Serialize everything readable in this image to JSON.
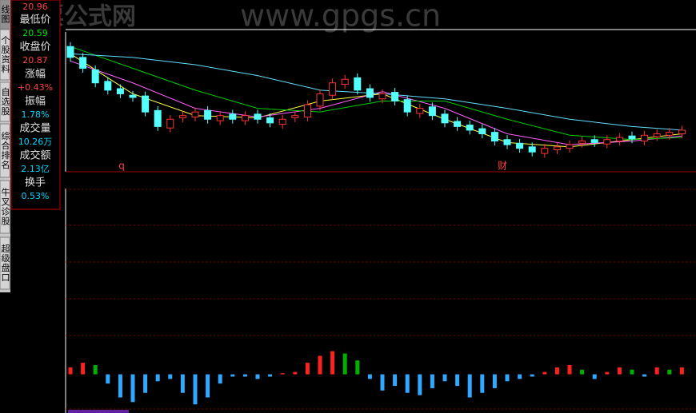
{
  "sidebar": {
    "tabs": [
      "线图",
      "个股资料",
      "自选股",
      "综合排名",
      "牛叉诊股",
      "超级盘口"
    ]
  },
  "watermark": {
    "brand": "股票公式网",
    "url": "www.gpgs.cn"
  },
  "info_panel": {
    "high_value": "20.96",
    "rows": [
      {
        "label": "最低价",
        "value": "20.59",
        "color": "#00e000"
      },
      {
        "label": "收盘价",
        "value": "20.87",
        "color": "#ff4040"
      },
      {
        "label": "涨幅",
        "value": "+0.43%",
        "color": "#ff4040"
      },
      {
        "label": "振幅",
        "value": "1.78%",
        "color": "#00d8ff"
      },
      {
        "label": "成交量",
        "value": "10.26万",
        "color": "#00d8ff"
      },
      {
        "label": "成交额",
        "value": "2.13亿",
        "color": "#00d8ff"
      },
      {
        "label": "换手",
        "value": "0.53%",
        "color": "#00d8ff"
      }
    ]
  },
  "chart_data": [
    {
      "type": "candlestick",
      "ylim": [
        19.9,
        21.8
      ],
      "up_color": "#ff3232",
      "down_color": "#54ffff",
      "annotations": [
        "q",
        "财"
      ],
      "open": [
        21.6,
        21.45,
        21.28,
        21.12,
        21.02,
        20.93,
        20.92,
        20.72,
        20.48,
        20.62,
        20.63,
        20.72,
        20.58,
        20.67,
        20.58,
        20.67,
        20.62,
        20.53,
        20.62,
        20.63,
        20.78,
        20.93,
        21.08,
        21.17,
        21.02,
        20.88,
        20.97,
        20.87,
        20.68,
        20.77,
        20.67,
        20.57,
        20.52,
        20.47,
        20.42,
        20.32,
        20.27,
        20.22,
        20.13,
        20.18,
        20.2,
        20.27,
        20.32,
        20.26,
        20.3,
        20.37,
        20.3,
        20.36,
        20.38,
        20.4
      ],
      "high": [
        21.66,
        21.51,
        21.34,
        21.18,
        21.08,
        20.99,
        20.98,
        20.78,
        20.66,
        20.71,
        20.76,
        20.78,
        20.71,
        20.73,
        20.71,
        20.73,
        20.68,
        20.66,
        20.71,
        20.86,
        21.01,
        21.16,
        21.21,
        21.23,
        21.08,
        21.01,
        21.03,
        20.93,
        20.81,
        20.83,
        20.73,
        20.63,
        20.58,
        20.53,
        20.48,
        20.38,
        20.33,
        20.28,
        20.26,
        20.28,
        20.31,
        20.36,
        20.38,
        20.38,
        20.41,
        20.43,
        20.44,
        20.46,
        20.48,
        20.51
      ],
      "low": [
        21.39,
        21.24,
        21.04,
        20.94,
        20.89,
        20.84,
        20.64,
        20.44,
        20.42,
        20.56,
        20.57,
        20.54,
        20.52,
        20.54,
        20.52,
        20.54,
        20.49,
        20.47,
        20.56,
        20.57,
        20.72,
        20.87,
        21.02,
        20.94,
        20.84,
        20.82,
        20.79,
        20.64,
        20.62,
        20.59,
        20.49,
        20.44,
        20.39,
        20.34,
        20.24,
        20.19,
        20.14,
        20.09,
        20.07,
        20.12,
        20.14,
        20.21,
        20.22,
        20.2,
        20.24,
        20.27,
        20.24,
        20.3,
        20.32,
        20.34
      ],
      "close": [
        21.45,
        21.3,
        21.1,
        21.0,
        20.95,
        20.9,
        20.7,
        20.5,
        20.6,
        20.65,
        20.7,
        20.6,
        20.65,
        20.6,
        20.65,
        20.6,
        20.55,
        20.6,
        20.65,
        20.8,
        20.95,
        21.1,
        21.15,
        21.0,
        20.9,
        20.95,
        20.85,
        20.7,
        20.75,
        20.65,
        20.55,
        20.5,
        20.45,
        20.4,
        20.3,
        20.25,
        20.2,
        20.15,
        20.2,
        20.22,
        20.25,
        20.3,
        20.28,
        20.32,
        20.35,
        20.33,
        20.38,
        20.4,
        20.42,
        20.45
      ],
      "series": [
        {
          "color": "#ffff40",
          "x": [
            0,
            5,
            10,
            15,
            20,
            25,
            30,
            35,
            40,
            45,
            49
          ],
          "values": [
            21.5,
            20.95,
            20.65,
            20.62,
            20.85,
            20.95,
            20.6,
            20.28,
            20.22,
            20.32,
            20.4
          ]
        },
        {
          "color": "#ff60ff",
          "x": [
            0,
            5,
            10,
            15,
            20,
            25,
            30,
            35,
            40,
            45,
            49
          ],
          "values": [
            21.4,
            21.1,
            20.75,
            20.63,
            20.75,
            20.98,
            20.75,
            20.4,
            20.25,
            20.3,
            20.37
          ]
        },
        {
          "color": "#00d000",
          "x": [
            0,
            5,
            10,
            15,
            20,
            25,
            30,
            35,
            40,
            45,
            49
          ],
          "values": [
            21.6,
            21.3,
            21.0,
            20.75,
            20.7,
            20.85,
            20.85,
            20.6,
            20.38,
            20.32,
            20.35
          ]
        },
        {
          "color": "#60e0ff",
          "x": [
            0,
            5,
            10,
            15,
            20,
            25,
            30,
            35,
            40,
            45,
            49
          ],
          "values": [
            21.5,
            21.45,
            21.35,
            21.2,
            21.0,
            20.95,
            20.88,
            20.75,
            20.6,
            20.5,
            20.45
          ]
        }
      ]
    },
    {
      "type": "bar",
      "ylim": [
        -0.15,
        0.8
      ],
      "up_color": "#ff2020",
      "fall_color": "#00b000",
      "neg_color": "#30a8ff",
      "values": [
        0.03,
        0.05,
        0.04,
        -0.04,
        -0.1,
        -0.12,
        -0.08,
        -0.03,
        -0.02,
        -0.08,
        -0.13,
        -0.1,
        -0.04,
        -0.01,
        -0.01,
        -0.02,
        -0.01,
        0.005,
        0.01,
        0.05,
        0.08,
        0.1,
        0.09,
        0.06,
        -0.02,
        -0.07,
        -0.05,
        -0.08,
        -0.09,
        -0.06,
        -0.03,
        -0.05,
        -0.1,
        -0.08,
        -0.06,
        -0.03,
        -0.02,
        -0.01,
        0.01,
        0.03,
        0.04,
        0.02,
        -0.02,
        0.01,
        0.03,
        0.02,
        -0.01,
        0.03,
        0.02,
        0.03
      ]
    }
  ]
}
